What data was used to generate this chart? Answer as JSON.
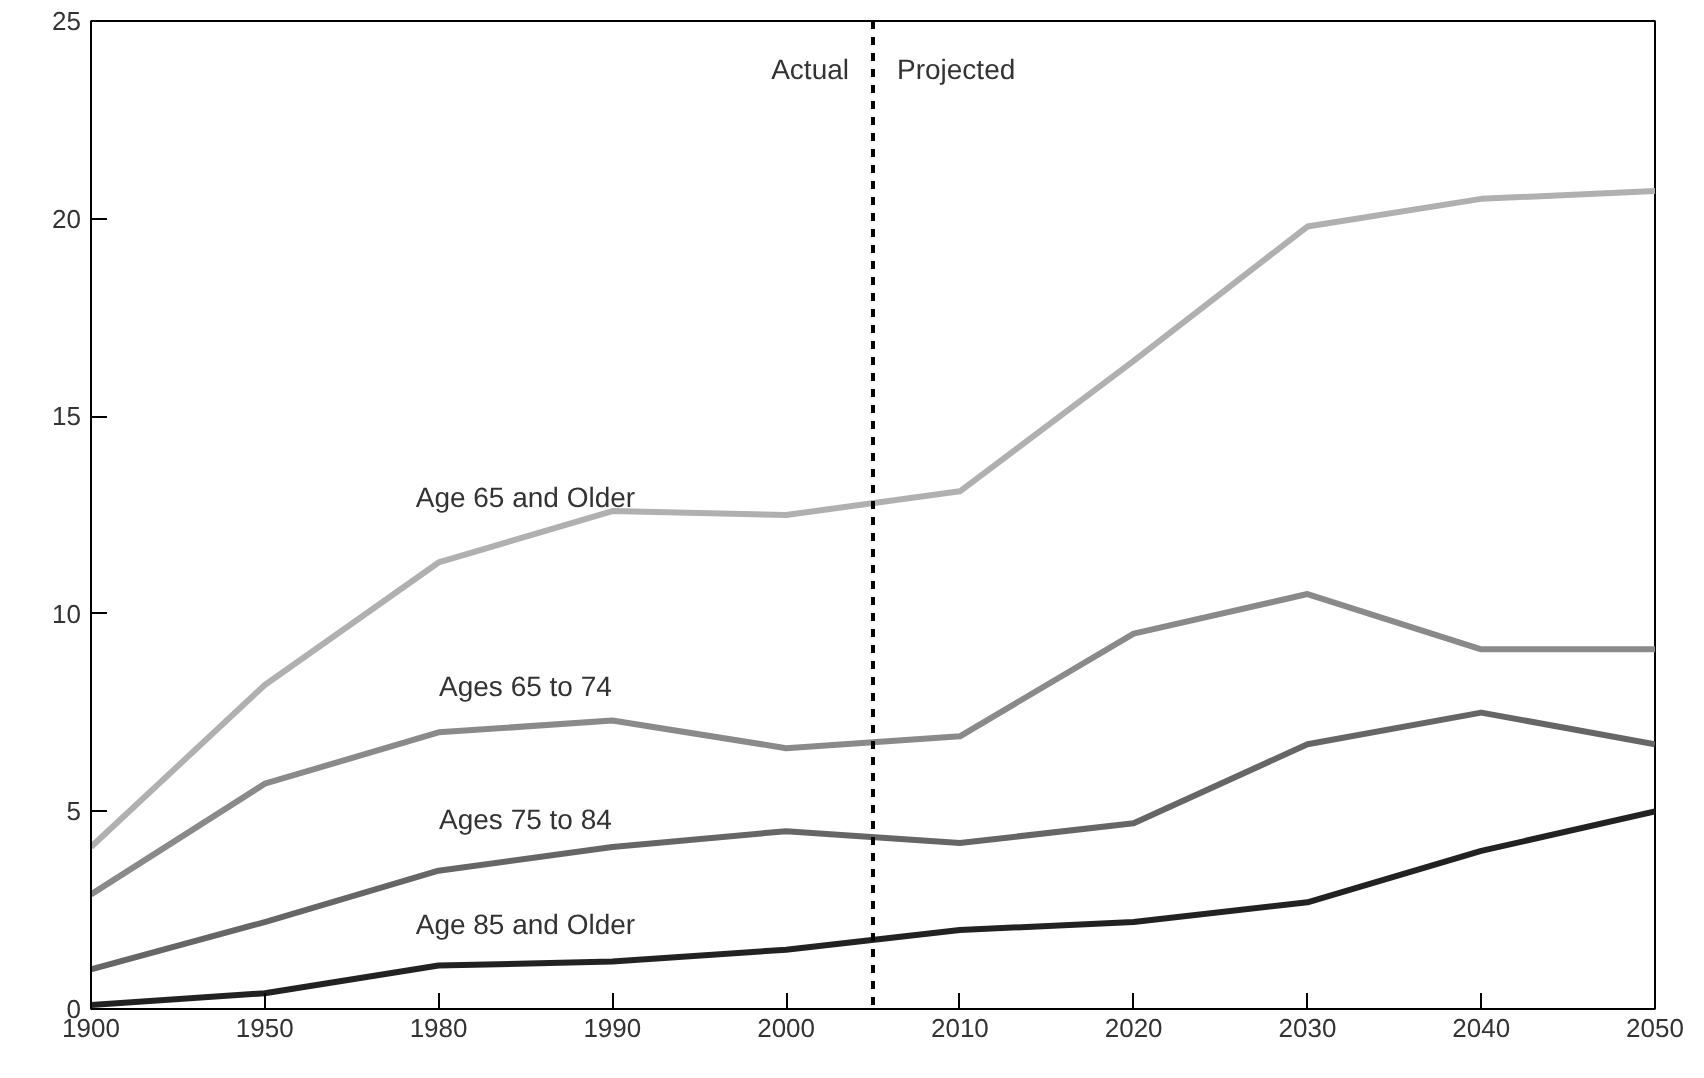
{
  "chart_data": {
    "type": "line",
    "categories": [
      "1900",
      "1950",
      "1980",
      "1990",
      "2000",
      "2010",
      "2020",
      "2030",
      "2040",
      "2050"
    ],
    "series": [
      {
        "name": "Age 65 and Older",
        "color": "#b0b0b0",
        "values": [
          4.1,
          8.2,
          11.3,
          12.6,
          12.5,
          13.1,
          16.4,
          19.8,
          20.5,
          20.7
        ]
      },
      {
        "name": "Ages 65 to 74",
        "color": "#8a8a8a",
        "values": [
          2.9,
          5.7,
          7.0,
          7.3,
          6.6,
          6.9,
          9.5,
          10.5,
          9.1,
          9.1
        ]
      },
      {
        "name": "Ages 75 to 84",
        "color": "#666666",
        "values": [
          1.0,
          2.2,
          3.5,
          4.1,
          4.5,
          4.2,
          4.7,
          6.7,
          7.5,
          6.7
        ]
      },
      {
        "name": "Age 85 and Older",
        "color": "#222222",
        "values": [
          0.1,
          0.4,
          1.1,
          1.2,
          1.5,
          2.0,
          2.2,
          2.7,
          4.0,
          5.0
        ]
      }
    ],
    "ylim": [
      0,
      25
    ],
    "yticks": [
      0,
      5,
      10,
      15,
      20,
      25
    ],
    "grid": false,
    "marker": "none",
    "line_style": "solid",
    "annotations": [
      "Actual",
      "Projected"
    ]
  }
}
